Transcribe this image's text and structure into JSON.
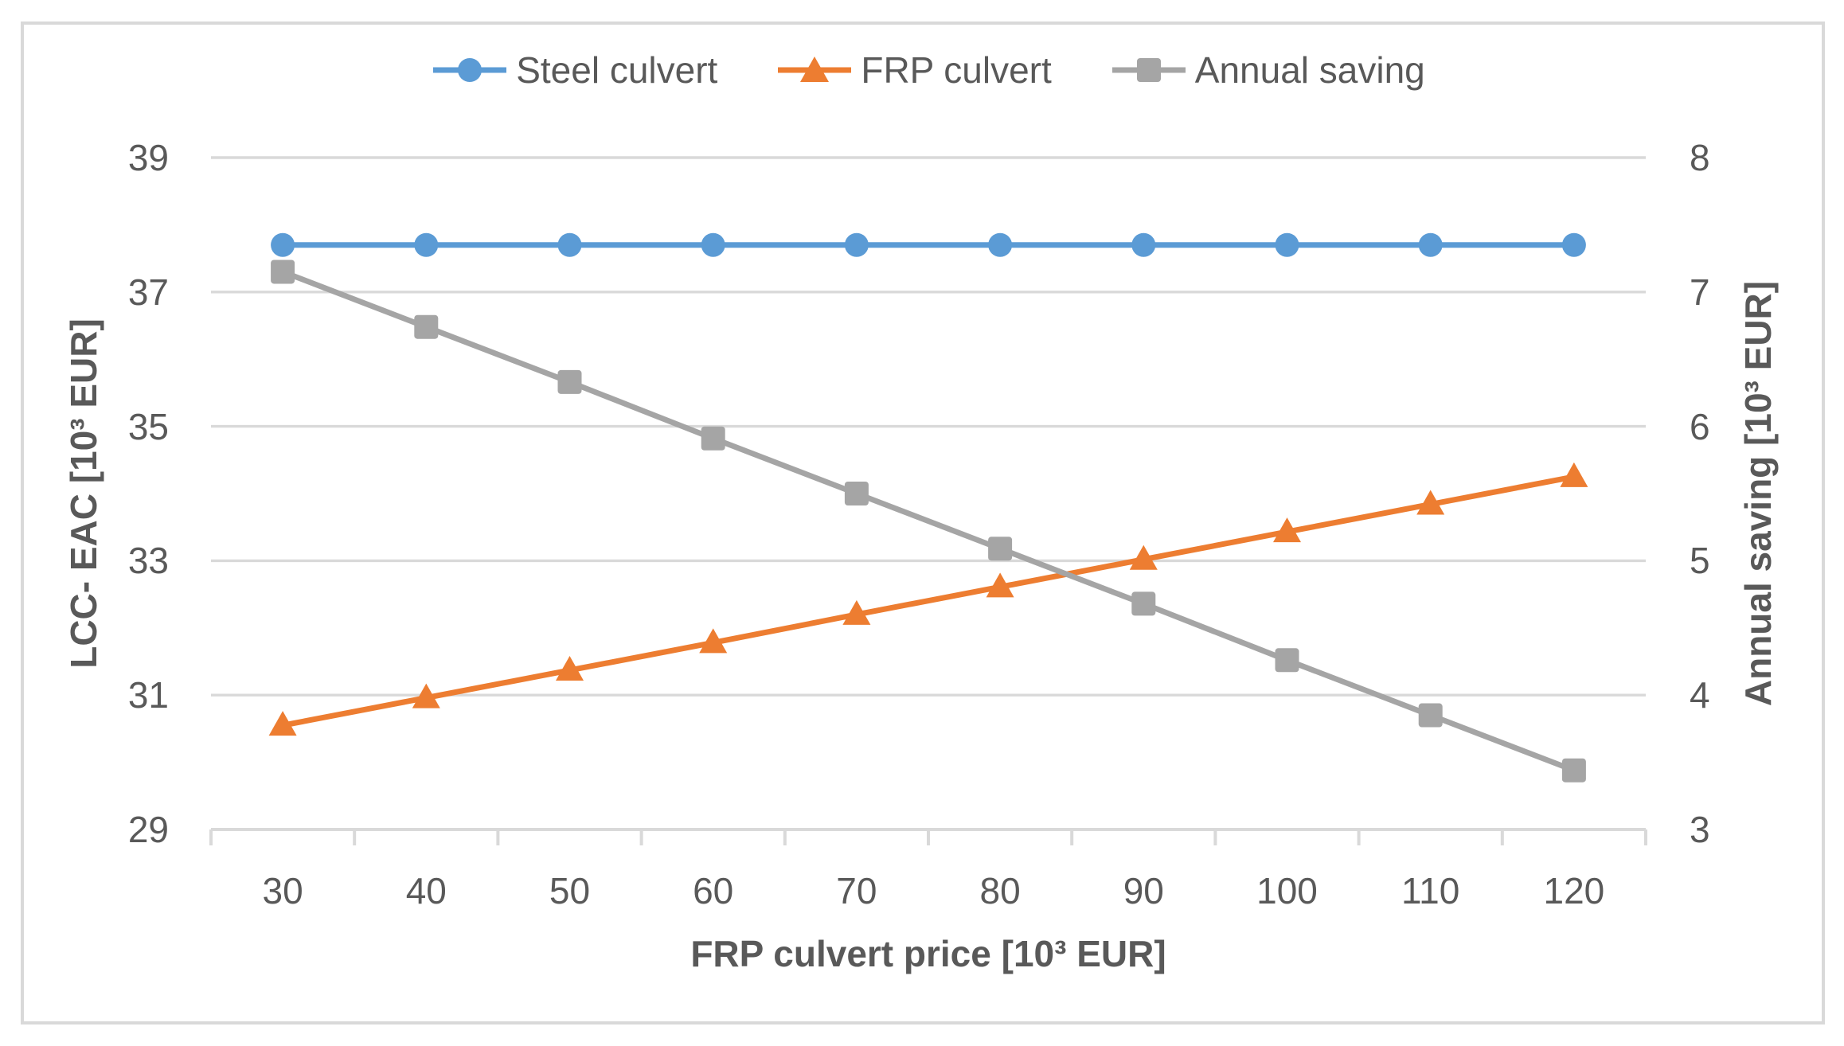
{
  "colors": {
    "steel_blue": "#5B9BD5",
    "frp_orange": "#ED7D31",
    "saving_gray": "#A5A5A5",
    "text_gray": "#595959",
    "grid_gray": "#D9D9D9"
  },
  "chart_data": {
    "type": "line",
    "title": "",
    "x": [
      30,
      40,
      50,
      60,
      70,
      80,
      90,
      100,
      110,
      120
    ],
    "xlabel": "FRP culvert price [10³ EUR]",
    "ylabel_left": "LCC- EAC [10³ EUR]",
    "ylabel_right": "Annual saving  [10³ EUR]",
    "ylim_left": [
      29,
      39
    ],
    "ylim_right": [
      3,
      8
    ],
    "yticks_left": [
      29,
      31,
      33,
      35,
      37,
      39
    ],
    "yticks_right": [
      3,
      4,
      5,
      6,
      7,
      8
    ],
    "xticks": [
      30,
      40,
      50,
      60,
      70,
      80,
      90,
      100,
      110,
      120
    ],
    "grid": true,
    "legend_position": "top-center",
    "series": [
      {
        "name": "Steel culvert",
        "yaxis": "left",
        "color": "#5B9BD5",
        "marker": "circle",
        "values": [
          37.7,
          37.7,
          37.7,
          37.7,
          37.7,
          37.7,
          37.7,
          37.7,
          37.7,
          37.7
        ]
      },
      {
        "name": "FRP culvert",
        "yaxis": "left",
        "color": "#ED7D31",
        "marker": "triangle",
        "values": [
          30.55,
          30.96,
          31.37,
          31.78,
          32.2,
          32.61,
          33.02,
          33.43,
          33.84,
          34.25
        ]
      },
      {
        "name": "Annual saving",
        "yaxis": "right",
        "color": "#A5A5A5",
        "marker": "square",
        "values": [
          7.15,
          6.74,
          6.33,
          5.91,
          5.5,
          5.09,
          4.68,
          4.26,
          3.85,
          3.44
        ]
      }
    ]
  }
}
